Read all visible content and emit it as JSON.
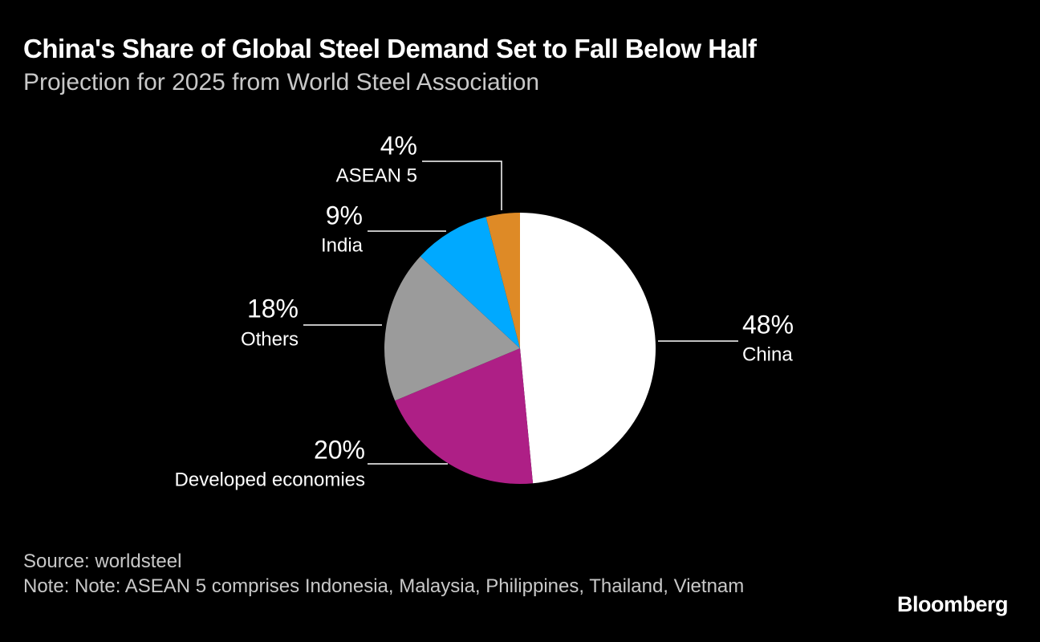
{
  "chart_data": {
    "type": "pie",
    "title": "China's Share of Global Steel Demand Set to Fall Below Half",
    "subtitle": "Projection for 2025 from World Steel Association",
    "categories": [
      "China",
      "Developed economies",
      "Others",
      "India",
      "ASEAN 5"
    ],
    "values": [
      48,
      20,
      18,
      9,
      4
    ],
    "value_labels": [
      "48%",
      "20%",
      "18%",
      "9%",
      "4%"
    ],
    "colors": [
      "#ffffff",
      "#ae1f86",
      "#9b9b9b",
      "#00a9ff",
      "#de8a26"
    ],
    "source": "Source: worldsteel",
    "note": "Note: Note: ASEAN 5 comprises Indonesia, Malaysia, Philippines, Thailand, Vietnam",
    "brand": "Bloomberg"
  }
}
